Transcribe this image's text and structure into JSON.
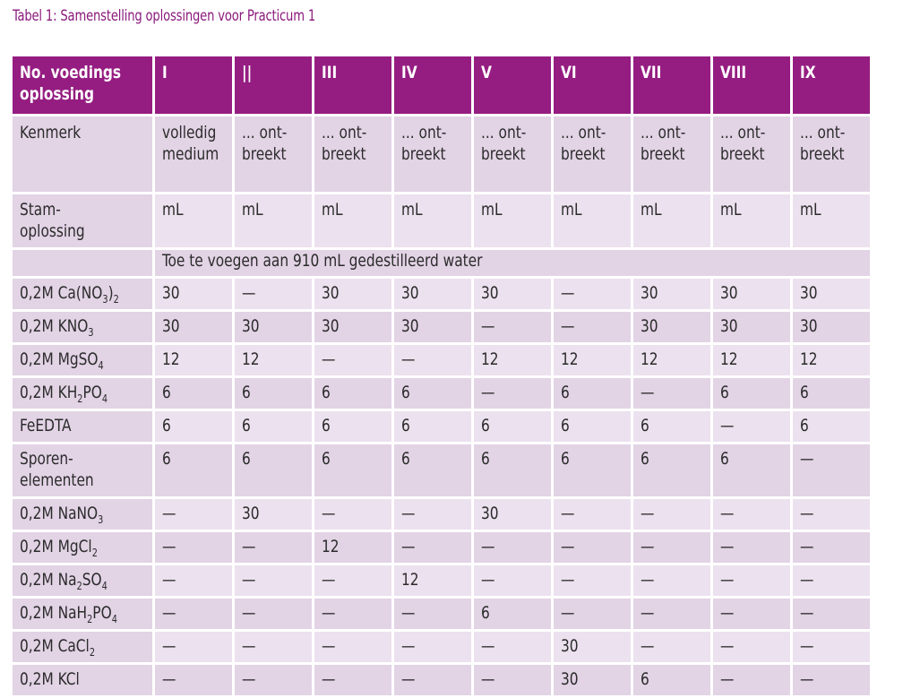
{
  "caption": "Tabel 1: Samenstelling oplossingen voor Practicum 1",
  "table": {
    "header": {
      "label": "No. voedings oplossing",
      "columns": [
        "I",
        "||",
        "III",
        "IV",
        "V",
        "VI",
        "VII",
        "VIII",
        "IX"
      ]
    },
    "kenmerk": {
      "label": "Kenmerk",
      "values": [
        "volledig medium",
        "... ont-breekt",
        "... ont-breekt",
        "... ont-breekt",
        "... ont-breekt",
        "... ont-breekt",
        "... ont-breekt",
        "... ont-breekt",
        "... ont-breekt"
      ]
    },
    "stam": {
      "label": "Stam-oplossing",
      "values": [
        "mL",
        "mL",
        "mL",
        "mL",
        "mL",
        "mL",
        "mL",
        "mL",
        "mL"
      ]
    },
    "water_note": "Toe te voegen aan 910 mL gedestilleerd water",
    "rows": [
      {
        "label": "0,2M Ca(NO3)2",
        "values": [
          "30",
          "—",
          "30",
          "30",
          "30",
          "—",
          "30",
          "30",
          "30"
        ]
      },
      {
        "label": "0,2M KNO3",
        "values": [
          "30",
          "30",
          "30",
          "30",
          "—",
          "—",
          "30",
          "30",
          "30"
        ]
      },
      {
        "label": "0,2M MgSO4",
        "values": [
          "12",
          "12",
          "—",
          "—",
          "12",
          "12",
          "12",
          "12",
          "12"
        ]
      },
      {
        "label": "0,2M KH2PO4",
        "values": [
          "6",
          "6",
          "6",
          "6",
          "—",
          "6",
          "—",
          "6",
          "6"
        ]
      },
      {
        "label": "FeEDTA",
        "values": [
          "6",
          "6",
          "6",
          "6",
          "6",
          "6",
          "6",
          "—",
          "6"
        ]
      },
      {
        "label": "Sporen-elementen",
        "values": [
          "6",
          "6",
          "6",
          "6",
          "6",
          "6",
          "6",
          "6",
          "—"
        ]
      },
      {
        "label": "0,2M NaNO3",
        "values": [
          "—",
          "30",
          "—",
          "—",
          "30",
          "—",
          "—",
          "—",
          "—"
        ]
      },
      {
        "label": "0,2M MgCl2",
        "values": [
          "—",
          "—",
          "12",
          "—",
          "—",
          "—",
          "—",
          "—",
          "—"
        ]
      },
      {
        "label": "0,2M Na2SO4",
        "values": [
          "—",
          "—",
          "—",
          "12",
          "—",
          "—",
          "—",
          "—",
          "—"
        ]
      },
      {
        "label": "0,2M NaH2PO4",
        "values": [
          "—",
          "—",
          "—",
          "—",
          "6",
          "—",
          "—",
          "—",
          "—"
        ]
      },
      {
        "label": "0,2M CaCl2",
        "values": [
          "—",
          "—",
          "—",
          "—",
          "—",
          "30",
          "—",
          "—",
          "—"
        ]
      },
      {
        "label": "0,2M KCl",
        "values": [
          "—",
          "—",
          "—",
          "—",
          "—",
          "30",
          "6",
          "—",
          "—"
        ]
      }
    ]
  }
}
